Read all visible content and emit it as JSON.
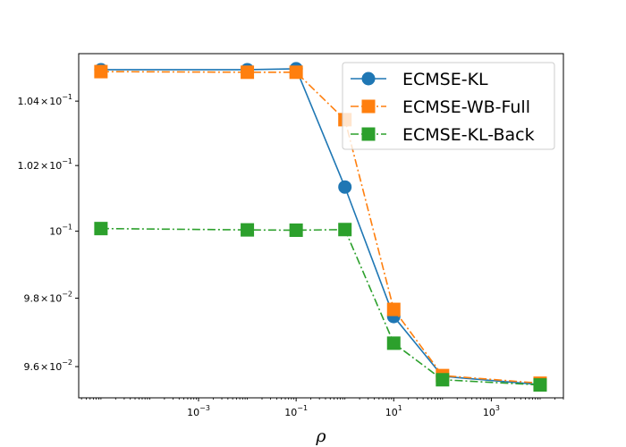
{
  "chart_data": {
    "type": "line",
    "title": "",
    "xlabel": "ρ",
    "ylabel": "",
    "xscale": "log",
    "yscale": "log",
    "grid": false,
    "legend_position": "top-right",
    "x": [
      1e-05,
      0.01,
      0.1,
      1,
      10,
      100,
      10000
    ],
    "xlim": [
      3.5e-06,
      30000
    ],
    "ylim": [
      0.0951,
      0.1055
    ],
    "xticks": [
      {
        "value": 0.001,
        "base": "10",
        "exp": "−3"
      },
      {
        "value": 0.1,
        "base": "10",
        "exp": "−1"
      },
      {
        "value": 10,
        "base": "10",
        "exp": "1"
      },
      {
        "value": 1000,
        "base": "10",
        "exp": "3"
      }
    ],
    "yticks": [
      {
        "value": 0.096,
        "mant": "9.6",
        "base": "10",
        "exp": "−2"
      },
      {
        "value": 0.098,
        "mant": "9.8",
        "base": "10",
        "exp": "−2"
      },
      {
        "value": 0.1,
        "mant": "",
        "base": "10",
        "exp": "−1"
      },
      {
        "value": 0.102,
        "mant": "1.02",
        "base": "10",
        "exp": "−1"
      },
      {
        "value": 0.104,
        "mant": "1.04",
        "base": "10",
        "exp": "−1"
      }
    ],
    "series": [
      {
        "name": "ECMSE-KL",
        "color": "#1f77b4",
        "marker": "circle",
        "linestyle": "solid",
        "values": [
          0.10499,
          0.10499,
          0.10502,
          0.10134,
          0.09746,
          0.09572,
          0.09548
        ]
      },
      {
        "name": "ECMSE-WB-Full",
        "color": "#ff7f0e",
        "marker": "square",
        "linestyle": "dashdot",
        "values": [
          0.10493,
          0.10491,
          0.10491,
          0.10342,
          0.09767,
          0.09574,
          0.09552
        ]
      },
      {
        "name": "ECMSE-KL-Back",
        "color": "#2ca02c",
        "marker": "square",
        "linestyle": "dashdot",
        "values": [
          0.10008,
          0.10004,
          0.10003,
          0.10005,
          0.09668,
          0.09562,
          0.09547
        ]
      }
    ]
  }
}
